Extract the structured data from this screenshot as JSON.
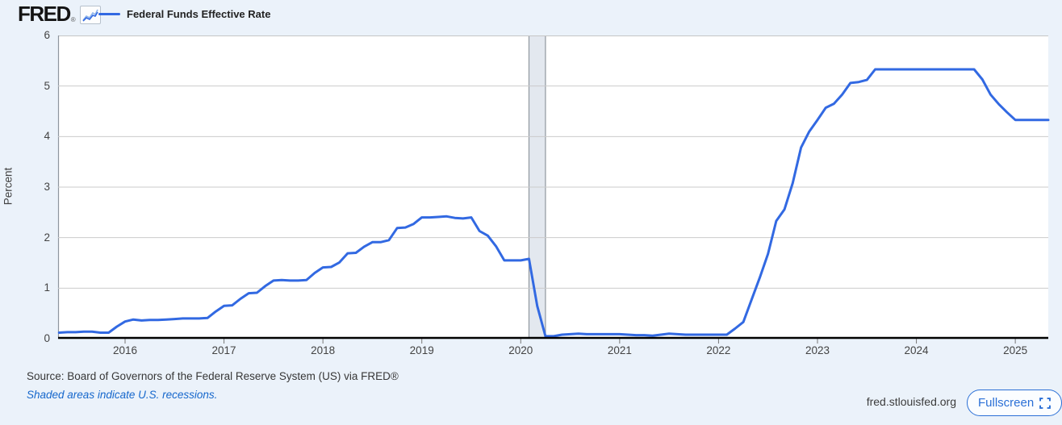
{
  "header": {
    "logo_text": "FRED",
    "registered_mark": "®",
    "legend_label": "Federal Funds Effective Rate"
  },
  "chart_data": {
    "type": "line",
    "title": "Federal Funds Effective Rate",
    "ylabel": "Percent",
    "xlabel": "",
    "ylim": [
      0,
      6
    ],
    "yticks": [
      0,
      1,
      2,
      3,
      4,
      5,
      6
    ],
    "xticks": [
      2016,
      2017,
      2018,
      2019,
      2020,
      2021,
      2022,
      2023,
      2024,
      2025
    ],
    "grid": "horizontal",
    "legend_position": "top-left",
    "frequency": "monthly",
    "start_month": "2015-05",
    "end_month": "2025-05",
    "recession_band": {
      "start": "2020-02",
      "end": "2020-04"
    },
    "series": [
      {
        "name": "Federal Funds Effective Rate",
        "units": "Percent",
        "values": [
          0.12,
          0.13,
          0.13,
          0.14,
          0.14,
          0.12,
          0.12,
          0.24,
          0.34,
          0.38,
          0.36,
          0.37,
          0.37,
          0.38,
          0.39,
          0.4,
          0.4,
          0.4,
          0.41,
          0.54,
          0.65,
          0.66,
          0.79,
          0.9,
          0.91,
          1.04,
          1.15,
          1.16,
          1.15,
          1.15,
          1.16,
          1.3,
          1.41,
          1.42,
          1.51,
          1.69,
          1.7,
          1.82,
          1.91,
          1.91,
          1.95,
          2.19,
          2.2,
          2.27,
          2.4,
          2.4,
          2.41,
          2.42,
          2.39,
          2.38,
          2.4,
          2.13,
          2.04,
          1.83,
          1.55,
          1.55,
          1.55,
          1.58,
          0.65,
          0.05,
          0.05,
          0.08,
          0.09,
          0.1,
          0.09,
          0.09,
          0.09,
          0.09,
          0.09,
          0.08,
          0.07,
          0.07,
          0.06,
          0.08,
          0.1,
          0.09,
          0.08,
          0.08,
          0.08,
          0.08,
          0.08,
          0.08,
          0.2,
          0.33,
          0.77,
          1.21,
          1.68,
          2.33,
          2.56,
          3.08,
          3.78,
          4.1,
          4.33,
          4.57,
          4.65,
          4.83,
          5.06,
          5.08,
          5.12,
          5.33,
          5.33,
          5.33,
          5.33,
          5.33,
          5.33,
          5.33,
          5.33,
          5.33,
          5.33,
          5.33,
          5.33,
          5.33,
          5.13,
          4.83,
          4.64,
          4.48,
          4.33,
          4.33,
          4.33,
          4.33,
          4.33
        ]
      }
    ],
    "colors": {
      "line": "#3269e2",
      "plot_background": "#ffffff",
      "page_background": "#ebf2fa",
      "gridline": "#cbcbcb",
      "plot_top_border": "#c5c5c5",
      "plot_left_border": "#8d959e",
      "axis": "#000000",
      "recession_fill": "#e3e8ef",
      "recession_edge": "#8f969e",
      "tick_text": "#434343"
    }
  },
  "footer": {
    "source_text": "Source: Board of Governors of the Federal Reserve System (US) via FRED®",
    "recession_note": "Shaded areas indicate U.S. recessions.",
    "site_link": "fred.stlouisfed.org",
    "fullscreen_label": "Fullscreen"
  }
}
